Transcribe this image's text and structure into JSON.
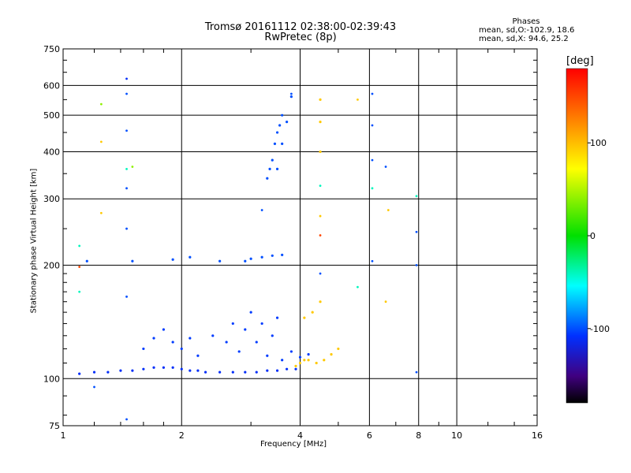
{
  "title": "Tromsø 20161112 02:38:00-02:39:43",
  "subtitle": "RwPretec (8p)",
  "phases": {
    "heading": "Phases",
    "line1": "mean, sd,O:-102.9, 18.6",
    "line2": "mean, sd,X:  94.6, 25.2"
  },
  "chart_data": {
    "type": "scatter",
    "xlabel": "Frequency [MHz]",
    "ylabel": "Stationary phase Virtual Height [km]",
    "x_scale": "log",
    "y_scale": "log",
    "xlim": [
      1,
      16
    ],
    "ylim": [
      75,
      750
    ],
    "x_ticks": [
      1,
      2,
      4,
      6,
      8,
      10,
      16
    ],
    "y_ticks": [
      75,
      100,
      200,
      300,
      400,
      500,
      600,
      750
    ],
    "grid": true,
    "colorbar": {
      "label": "[deg]",
      "range": [
        -180,
        180
      ],
      "ticks": [
        100,
        0,
        -100
      ]
    },
    "series": [
      {
        "trace": "O-mode F layer trace",
        "phase_deg": -110,
        "points": [
          [
            1.1,
            103
          ],
          [
            1.2,
            104
          ],
          [
            1.3,
            104
          ],
          [
            1.4,
            105
          ],
          [
            1.5,
            105
          ],
          [
            1.6,
            106
          ],
          [
            1.7,
            107
          ],
          [
            1.8,
            107
          ],
          [
            1.9,
            107
          ],
          [
            2.0,
            106
          ],
          [
            2.1,
            105
          ],
          [
            2.2,
            105
          ],
          [
            2.3,
            104
          ],
          [
            2.5,
            104
          ],
          [
            2.7,
            104
          ],
          [
            2.9,
            104
          ],
          [
            3.1,
            104
          ],
          [
            3.3,
            105
          ],
          [
            3.5,
            105
          ],
          [
            3.7,
            106
          ],
          [
            3.9,
            106
          ]
        ]
      },
      {
        "trace": "O-mode F trace scattered spread",
        "phase_deg": -105,
        "points": [
          [
            1.6,
            120
          ],
          [
            1.7,
            128
          ],
          [
            1.8,
            135
          ],
          [
            1.9,
            125
          ],
          [
            2.0,
            120
          ],
          [
            2.1,
            128
          ],
          [
            2.2,
            115
          ],
          [
            2.4,
            130
          ],
          [
            2.6,
            125
          ],
          [
            2.7,
            140
          ],
          [
            2.8,
            118
          ],
          [
            2.9,
            135
          ],
          [
            3.0,
            150
          ],
          [
            3.1,
            125
          ],
          [
            3.2,
            140
          ],
          [
            3.3,
            115
          ],
          [
            3.4,
            130
          ],
          [
            3.5,
            145
          ],
          [
            3.6,
            112
          ],
          [
            3.8,
            118
          ],
          [
            4.0,
            114
          ],
          [
            4.2,
            116
          ]
        ]
      },
      {
        "trace": "O-mode second-hop trace",
        "phase_deg": -100,
        "points": [
          [
            1.15,
            205
          ],
          [
            1.5,
            205
          ],
          [
            1.9,
            207
          ],
          [
            2.1,
            210
          ],
          [
            2.5,
            205
          ],
          [
            2.9,
            205
          ],
          [
            3.0,
            208
          ],
          [
            3.2,
            210
          ],
          [
            3.4,
            212
          ],
          [
            3.6,
            213
          ]
        ]
      },
      {
        "trace": "O-mode high echoes",
        "phase_deg": -100,
        "points": [
          [
            3.3,
            340
          ],
          [
            3.35,
            360
          ],
          [
            3.4,
            380
          ],
          [
            3.45,
            420
          ],
          [
            3.5,
            450
          ],
          [
            3.55,
            470
          ],
          [
            3.6,
            500
          ],
          [
            3.5,
            360
          ],
          [
            3.6,
            420
          ],
          [
            3.7,
            480
          ],
          [
            3.8,
            560
          ]
        ]
      },
      {
        "trace": "X-mode F trace",
        "phase_deg": 95,
        "points": [
          [
            3.9,
            108
          ],
          [
            4.0,
            110
          ],
          [
            4.1,
            112
          ],
          [
            4.2,
            112
          ],
          [
            4.4,
            110
          ],
          [
            4.6,
            112
          ],
          [
            4.8,
            116
          ],
          [
            5.0,
            120
          ],
          [
            4.1,
            145
          ],
          [
            4.3,
            150
          ],
          [
            4.5,
            160
          ],
          [
            4.5,
            400
          ],
          [
            4.5,
            480
          ],
          [
            4.5,
            550
          ]
        ]
      }
    ],
    "isolated_points": [
      {
        "x": 1.1,
        "y": 198,
        "phase_deg": 150
      },
      {
        "x": 1.25,
        "y": 535,
        "phase_deg": 40
      },
      {
        "x": 1.25,
        "y": 425,
        "phase_deg": 95
      },
      {
        "x": 1.25,
        "y": 275,
        "phase_deg": 95
      },
      {
        "x": 1.45,
        "y": 625,
        "phase_deg": -110
      },
      {
        "x": 1.45,
        "y": 570,
        "phase_deg": -100
      },
      {
        "x": 1.45,
        "y": 455,
        "phase_deg": -100
      },
      {
        "x": 1.45,
        "y": 360,
        "phase_deg": -40
      },
      {
        "x": 1.5,
        "y": 365,
        "phase_deg": 40
      },
      {
        "x": 1.45,
        "y": 320,
        "phase_deg": -100
      },
      {
        "x": 1.45,
        "y": 250,
        "phase_deg": -100
      },
      {
        "x": 1.45,
        "y": 165,
        "phase_deg": -100
      },
      {
        "x": 1.45,
        "y": 78,
        "phase_deg": -100
      },
      {
        "x": 1.1,
        "y": 225,
        "phase_deg": -40
      },
      {
        "x": 1.1,
        "y": 170,
        "phase_deg": -40
      },
      {
        "x": 1.2,
        "y": 95,
        "phase_deg": -100
      },
      {
        "x": 3.2,
        "y": 280,
        "phase_deg": -100
      },
      {
        "x": 3.8,
        "y": 570,
        "phase_deg": -100
      },
      {
        "x": 4.5,
        "y": 325,
        "phase_deg": -40
      },
      {
        "x": 4.5,
        "y": 270,
        "phase_deg": 95
      },
      {
        "x": 4.5,
        "y": 240,
        "phase_deg": 150
      },
      {
        "x": 4.5,
        "y": 190,
        "phase_deg": -100
      },
      {
        "x": 5.6,
        "y": 550,
        "phase_deg": 95
      },
      {
        "x": 5.6,
        "y": 175,
        "phase_deg": -40
      },
      {
        "x": 6.1,
        "y": 570,
        "phase_deg": -100
      },
      {
        "x": 6.1,
        "y": 470,
        "phase_deg": -100
      },
      {
        "x": 6.1,
        "y": 380,
        "phase_deg": -100
      },
      {
        "x": 6.1,
        "y": 320,
        "phase_deg": -40
      },
      {
        "x": 6.1,
        "y": 205,
        "phase_deg": -100
      },
      {
        "x": 6.6,
        "y": 365,
        "phase_deg": -100
      },
      {
        "x": 6.7,
        "y": 280,
        "phase_deg": 95
      },
      {
        "x": 6.6,
        "y": 160,
        "phase_deg": 95
      },
      {
        "x": 7.9,
        "y": 305,
        "phase_deg": -40
      },
      {
        "x": 7.9,
        "y": 245,
        "phase_deg": -100
      },
      {
        "x": 7.9,
        "y": 200,
        "phase_deg": -100
      },
      {
        "x": 7.9,
        "y": 104,
        "phase_deg": -100
      }
    ]
  }
}
